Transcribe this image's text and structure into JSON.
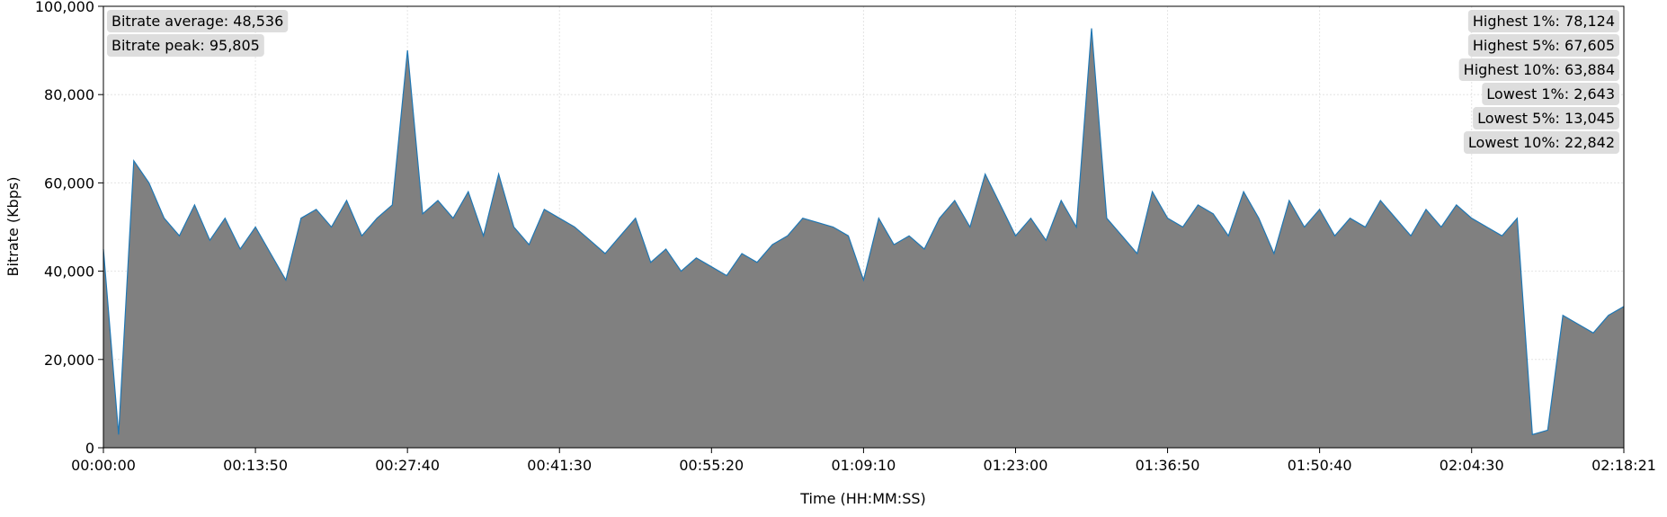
{
  "chart_data": {
    "type": "area",
    "x_label": "Time (HH:MM:SS)",
    "y_label": "Bitrate (Kbps)",
    "xlim": [
      0,
      8301
    ],
    "xticks": [
      {
        "value": 0,
        "label": "00:00:00"
      },
      {
        "value": 830,
        "label": "00:13:50"
      },
      {
        "value": 1660,
        "label": "00:27:40"
      },
      {
        "value": 2490,
        "label": "00:41:30"
      },
      {
        "value": 3320,
        "label": "00:55:20"
      },
      {
        "value": 4150,
        "label": "01:09:10"
      },
      {
        "value": 4980,
        "label": "01:23:00"
      },
      {
        "value": 5810,
        "label": "01:36:50"
      },
      {
        "value": 6640,
        "label": "01:50:40"
      },
      {
        "value": 7470,
        "label": "02:04:30"
      },
      {
        "value": 8301,
        "label": "02:18:21"
      }
    ],
    "ylim": [
      0,
      100000
    ],
    "yticks": [
      {
        "value": 0,
        "label": "0"
      },
      {
        "value": 20000,
        "label": "20,000"
      },
      {
        "value": 40000,
        "label": "40,000"
      },
      {
        "value": 60000,
        "label": "60,000"
      },
      {
        "value": 80000,
        "label": "80,000"
      },
      {
        "value": 100000,
        "label": "100,000"
      }
    ],
    "grid": true,
    "line_color": "#1f77b4",
    "fill_color": "#808080",
    "annotations_left": [
      "Bitrate average: 48,536",
      "Bitrate peak: 95,805"
    ],
    "annotations_right": [
      "Highest 1%: 78,124",
      "Highest 5%: 67,605",
      "Highest 10%: 63,884",
      "Lowest 1%: 2,643",
      "Lowest 5%: 13,045",
      "Lowest 10%: 22,842"
    ],
    "x": [
      0,
      83,
      166,
      249,
      332,
      415,
      498,
      581,
      664,
      747,
      830,
      913,
      996,
      1079,
      1162,
      1245,
      1328,
      1411,
      1494,
      1577,
      1660,
      1743,
      1826,
      1909,
      1992,
      2075,
      2158,
      2241,
      2324,
      2407,
      2490,
      2573,
      2656,
      2739,
      2822,
      2905,
      2988,
      3071,
      3154,
      3237,
      3320,
      3403,
      3486,
      3569,
      3652,
      3735,
      3818,
      3901,
      3984,
      4067,
      4150,
      4233,
      4316,
      4399,
      4482,
      4565,
      4648,
      4731,
      4814,
      4897,
      4980,
      5063,
      5146,
      5229,
      5312,
      5395,
      5478,
      5561,
      5644,
      5727,
      5810,
      5893,
      5976,
      6059,
      6142,
      6225,
      6308,
      6391,
      6474,
      6557,
      6640,
      6723,
      6806,
      6889,
      6972,
      7055,
      7138,
      7221,
      7304,
      7387,
      7470,
      7553,
      7636,
      7719,
      7802,
      7885,
      7968,
      8051,
      8134,
      8217,
      8301
    ],
    "values": [
      45000,
      3000,
      65000,
      60000,
      52000,
      48000,
      55000,
      47000,
      52000,
      45000,
      50000,
      44000,
      38000,
      52000,
      54000,
      50000,
      56000,
      48000,
      52000,
      55000,
      90000,
      53000,
      56000,
      52000,
      58000,
      48000,
      62000,
      50000,
      46000,
      54000,
      52000,
      50000,
      47000,
      44000,
      48000,
      52000,
      42000,
      45000,
      40000,
      43000,
      41000,
      39000,
      44000,
      42000,
      46000,
      48000,
      52000,
      51000,
      50000,
      48000,
      38000,
      52000,
      46000,
      48000,
      45000,
      52000,
      56000,
      50000,
      62000,
      55000,
      48000,
      52000,
      47000,
      56000,
      50000,
      95000,
      52000,
      48000,
      44000,
      58000,
      52000,
      50000,
      55000,
      53000,
      48000,
      58000,
      52000,
      44000,
      56000,
      50000,
      54000,
      48000,
      52000,
      50000,
      56000,
      52000,
      48000,
      54000,
      50000,
      55000,
      52000,
      50000,
      48000,
      52000,
      3000,
      4000,
      30000,
      28000,
      26000,
      30000,
      32000
    ]
  }
}
